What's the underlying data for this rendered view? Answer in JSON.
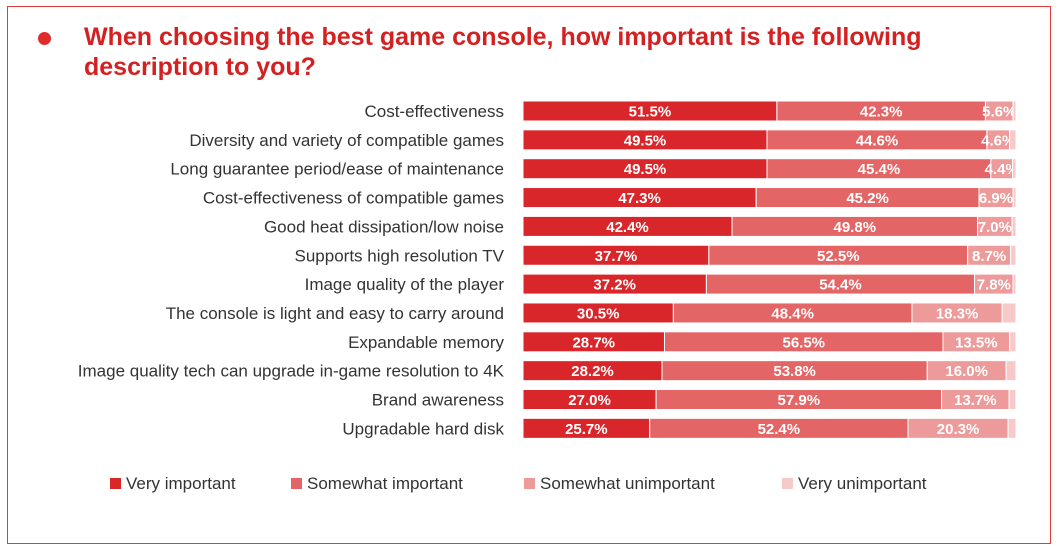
{
  "title": "When choosing the best game console, how important is the following description to you?",
  "chart_data": {
    "type": "bar",
    "orientation": "horizontal",
    "stacked": true,
    "title": "When choosing the best game console, how important is the following description to you?",
    "xlim": [
      0,
      100
    ],
    "legend_position": "bottom",
    "categories": [
      "Cost-effectiveness",
      "Diversity and variety of compatible games",
      "Long guarantee period/ease of maintenance",
      "Cost-effectiveness of compatible games",
      "Good heat dissipation/low noise",
      "Supports high resolution TV",
      "Image quality of the player",
      "The console is light and easy to carry around",
      "Expandable memory",
      "Image quality tech can upgrade in-game resolution to 4K",
      "Brand awareness",
      "Upgradable hard disk"
    ],
    "series": [
      {
        "name": "Very important",
        "color": "#d9262a",
        "values": [
          51.5,
          49.5,
          49.5,
          47.3,
          42.4,
          37.7,
          37.2,
          30.5,
          28.7,
          28.2,
          27.0,
          25.7
        ],
        "labels": [
          "51.5%",
          "49.5%",
          "49.5%",
          "47.3%",
          "42.4%",
          "37.7%",
          "37.2%",
          "30.5%",
          "28.7%",
          "28.2%",
          "27.0%",
          "25.7%"
        ]
      },
      {
        "name": "Somewhat important",
        "color": "#e46565",
        "values": [
          42.3,
          44.6,
          45.4,
          45.2,
          49.8,
          52.5,
          54.4,
          48.4,
          56.5,
          53.8,
          57.9,
          52.4
        ],
        "labels": [
          "42.3%",
          "44.6%",
          "45.4%",
          "45.2%",
          "49.8%",
          "52.5%",
          "54.4%",
          "48.4%",
          "56.5%",
          "53.8%",
          "57.9%",
          "52.4%"
        ]
      },
      {
        "name": "Somewhat unimportant",
        "color": "#ec9a9a",
        "values": [
          5.6,
          4.6,
          4.4,
          6.9,
          7.0,
          8.7,
          7.8,
          18.3,
          13.5,
          16.0,
          13.7,
          20.3
        ],
        "labels": [
          "5.6%",
          "4.6%",
          "4.4%",
          "6.9%",
          "7.0%",
          "8.7%",
          "7.8%",
          "18.3%",
          "13.5%",
          "16.0%",
          "13.7%",
          "20.3%"
        ]
      },
      {
        "name": "Very unimportant",
        "color": "#f7c9c9",
        "values": [
          0.6,
          1.3,
          0.7,
          0.6,
          0.8,
          1.1,
          0.6,
          2.8,
          1.3,
          2.0,
          1.4,
          1.6
        ],
        "labels": []
      }
    ]
  }
}
